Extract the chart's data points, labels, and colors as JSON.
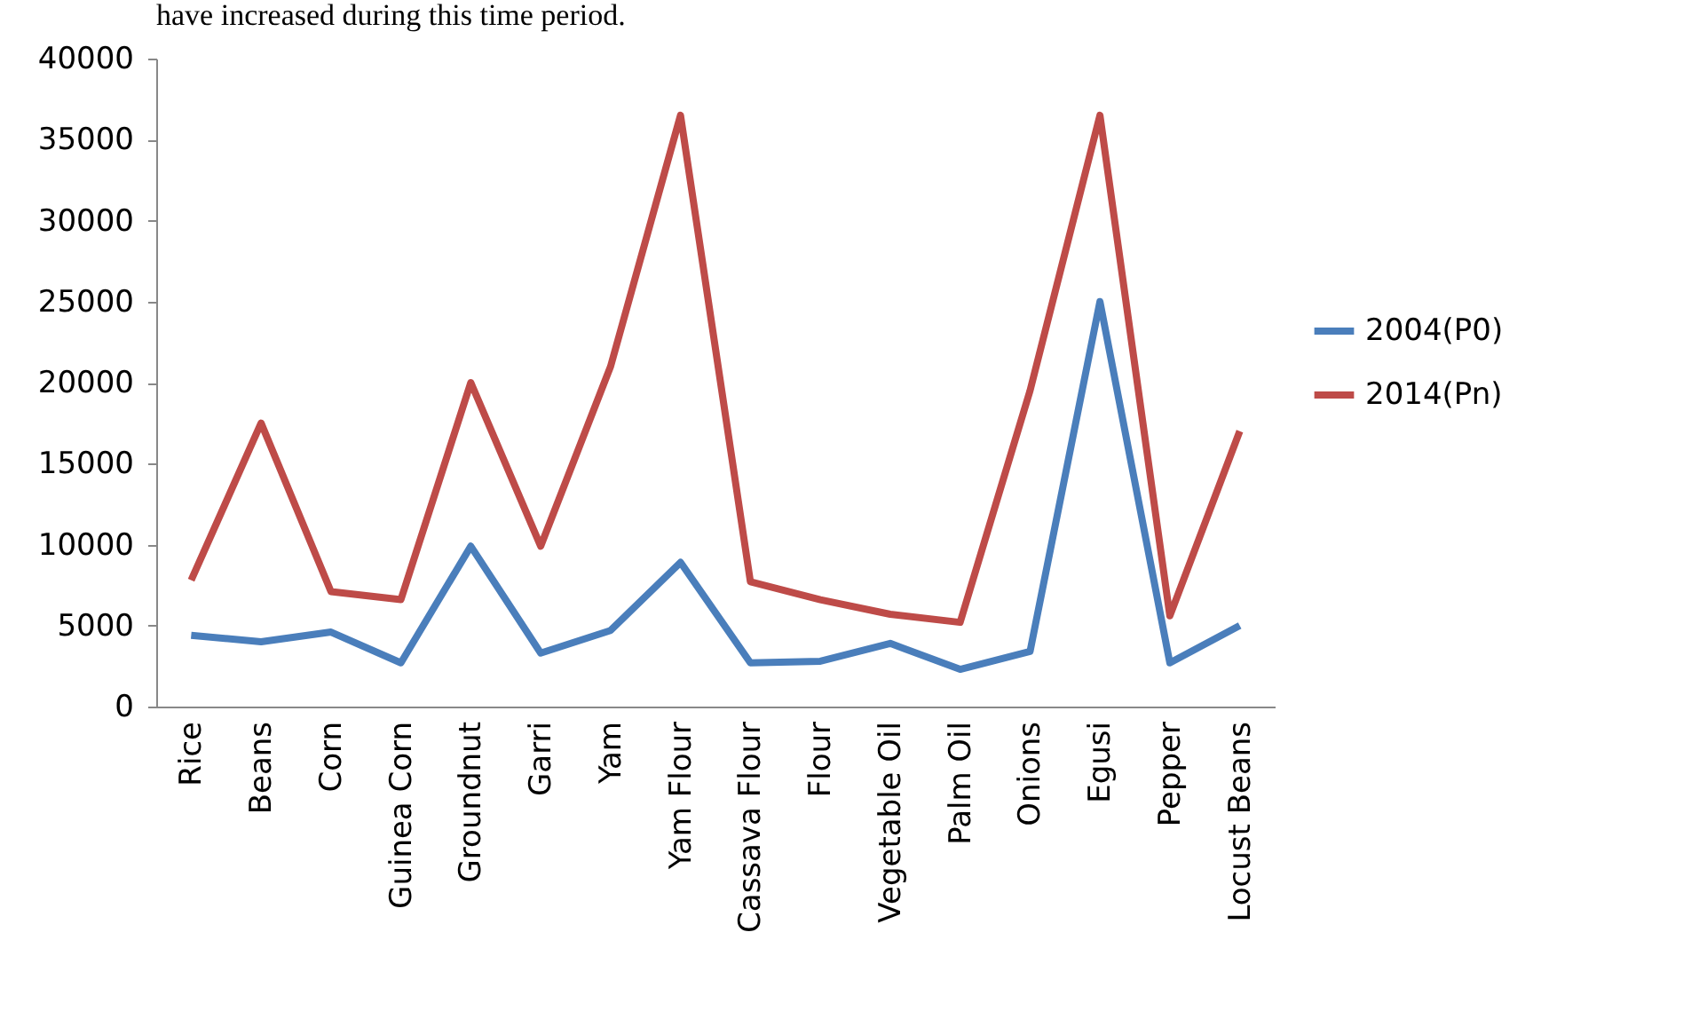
{
  "chart_data": {
    "type": "line",
    "annotations": [
      "have increased during this time period."
    ],
    "categories": [
      "Rice",
      "Beans",
      "Corn",
      "Guinea Corn",
      "Groundnut",
      "Garri",
      "Yam",
      "Yam Flour",
      "Cassava Flour",
      "Flour",
      "Vegetable Oil",
      "Palm Oil",
      "Onions",
      "Egusi",
      "Pepper",
      "Locust Beans"
    ],
    "series": [
      {
        "name": "2004(P0)",
        "color": "#4a7ebb",
        "values": [
          4400,
          4000,
          4600,
          2700,
          9900,
          3300,
          4700,
          8900,
          2700,
          2800,
          3900,
          2300,
          3400,
          25000,
          2700,
          5000
        ]
      },
      {
        "name": "2014(Pn)",
        "color": "#be4b48",
        "values": [
          7800,
          17500,
          7100,
          6600,
          20000,
          9900,
          21000,
          36500,
          7700,
          6600,
          5700,
          5200,
          19500,
          36500,
          5600,
          17000
        ]
      }
    ],
    "ylim": [
      0,
      40000
    ],
    "yticks": [
      0,
      5000,
      10000,
      15000,
      20000,
      25000,
      30000,
      35000,
      40000
    ],
    "grid": false,
    "legend": "right",
    "marker": "none",
    "line_style": "solid"
  }
}
